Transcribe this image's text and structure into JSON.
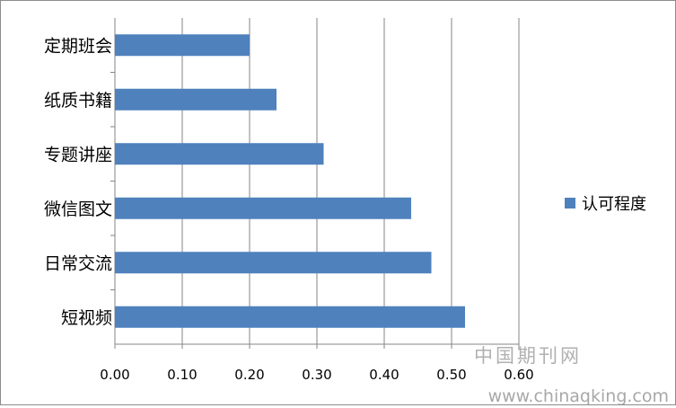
{
  "chart_data": {
    "type": "bar",
    "orientation": "horizontal",
    "categories": [
      "定期班会",
      "纸质书籍",
      "专题讲座",
      "微信图文",
      "日常交流",
      "短视频"
    ],
    "series": [
      {
        "name": "认可程度",
        "values": [
          0.2,
          0.24,
          0.31,
          0.44,
          0.47,
          0.52
        ],
        "color": "#4f81bd"
      }
    ],
    "xlim": [
      0,
      0.6
    ],
    "xticks": [
      "0.00",
      "0.10",
      "0.20",
      "0.30",
      "0.40",
      "0.50",
      "0.60"
    ],
    "grid": true,
    "legend_position": "right"
  },
  "watermark": {
    "line1": "中国期刊网",
    "line2": "www.chinaqking.com"
  }
}
